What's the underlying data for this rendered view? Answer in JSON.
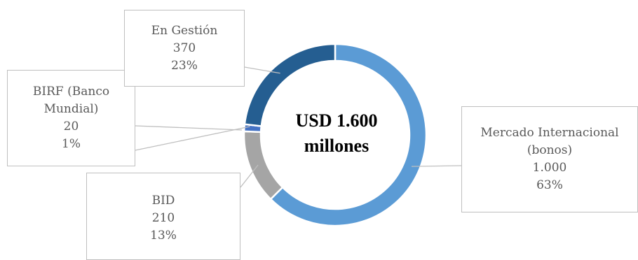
{
  "chart_data": {
    "type": "pie",
    "variant": "doughnut",
    "center_text": [
      "USD 1.600",
      "millones"
    ],
    "slices": [
      {
        "name": "Mercado Internacional (bonos)",
        "name_lines": [
          "Mercado Internacional",
          "(bonos)"
        ],
        "value": 1000,
        "value_text": "1.000",
        "percent_text": "63%",
        "color": "#5b9bd5"
      },
      {
        "name": "BID",
        "name_lines": [
          "BID"
        ],
        "value": 210,
        "value_text": "210",
        "percent_text": "13%",
        "color": "#a5a5a5"
      },
      {
        "name": "BIRF (Banco Mundial)",
        "name_lines": [
          "BIRF (Banco",
          "Mundial)"
        ],
        "value": 20,
        "value_text": "20",
        "percent_text": "1%",
        "color": "#4472c4"
      },
      {
        "name": "En Gestión",
        "name_lines": [
          "En Gestión"
        ],
        "value": 370,
        "value_text": "370",
        "percent_text": "23%",
        "color": "#255e91"
      }
    ],
    "legend": "none",
    "leader_line_color": "#bfbfbf",
    "label_border_color": "#bfbfbf",
    "label_text_color": "#595959"
  }
}
